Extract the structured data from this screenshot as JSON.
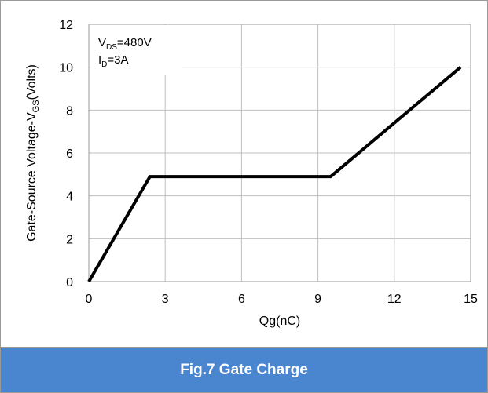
{
  "caption": "Fig.7 Gate Charge",
  "colors": {
    "caption_bar": "#4a86d0",
    "line": "#000000",
    "grid": "#bfbfbf"
  },
  "chart_data": {
    "type": "line",
    "xlabel": "Qg(nC)",
    "ylabel_parts": [
      "Gate-Source Voltage-V",
      "GS",
      "(Volts)"
    ],
    "xlim": [
      0,
      15
    ],
    "ylim": [
      0,
      12
    ],
    "xticks": [
      0,
      3,
      6,
      9,
      12,
      15
    ],
    "yticks": [
      0,
      2,
      4,
      6,
      8,
      10,
      12
    ],
    "grid": true,
    "annotation": {
      "line1_prefix": "V",
      "line1_sub": "DS",
      "line1_suffix": "=480V",
      "line2_prefix": "I",
      "line2_sub": "D",
      "line2_suffix": "=3A"
    },
    "series": [
      {
        "x": [
          0,
          2.4,
          9.5,
          14.6
        ],
        "y": [
          0,
          4.9,
          4.9,
          10
        ]
      }
    ]
  }
}
